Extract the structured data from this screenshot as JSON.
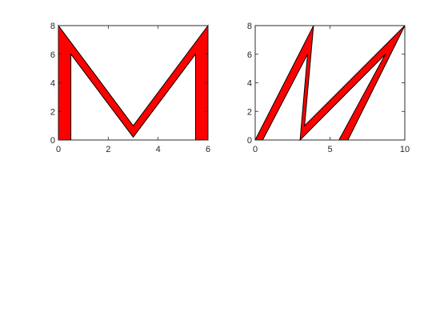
{
  "chart_data": [
    {
      "type": "area",
      "title": "",
      "xlabel": "",
      "ylabel": "",
      "xlim": [
        0,
        6
      ],
      "ylim": [
        0,
        8
      ],
      "xticks": [
        0,
        2,
        4,
        6
      ],
      "yticks": [
        0,
        2,
        4,
        6,
        8
      ],
      "xtick_labels": [
        "0",
        "2",
        "4",
        "6"
      ],
      "ytick_labels": [
        "0",
        "2",
        "4",
        "6",
        "8"
      ],
      "grid": false,
      "fill_color": "#ff0000",
      "edge_color": "#000000",
      "polygon": [
        [
          0,
          0
        ],
        [
          0,
          8
        ],
        [
          3,
          1
        ],
        [
          6,
          8
        ],
        [
          6,
          0
        ],
        [
          5.5,
          0
        ],
        [
          5.5,
          6
        ],
        [
          3,
          0.2
        ],
        [
          0.5,
          6
        ],
        [
          0.5,
          0
        ]
      ]
    },
    {
      "type": "area",
      "title": "",
      "xlabel": "",
      "ylabel": "",
      "xlim": [
        0,
        10
      ],
      "ylim": [
        0,
        8
      ],
      "xticks": [
        0,
        5,
        10
      ],
      "yticks": [
        0,
        2,
        4,
        6,
        8
      ],
      "xtick_labels": [
        "0",
        "5",
        "10"
      ],
      "ytick_labels": [
        "0",
        "2",
        "4",
        "6",
        "8"
      ],
      "grid": false,
      "fill_color": "#ff0000",
      "edge_color": "#000000",
      "polygon": [
        [
          0,
          0
        ],
        [
          3.9,
          8
        ],
        [
          3.3,
          1
        ],
        [
          10,
          8
        ],
        [
          6.2,
          0
        ],
        [
          5.6,
          0
        ],
        [
          8.7,
          6
        ],
        [
          3.0,
          0
        ],
        [
          3.5,
          6
        ],
        [
          0.5,
          0
        ]
      ]
    }
  ]
}
